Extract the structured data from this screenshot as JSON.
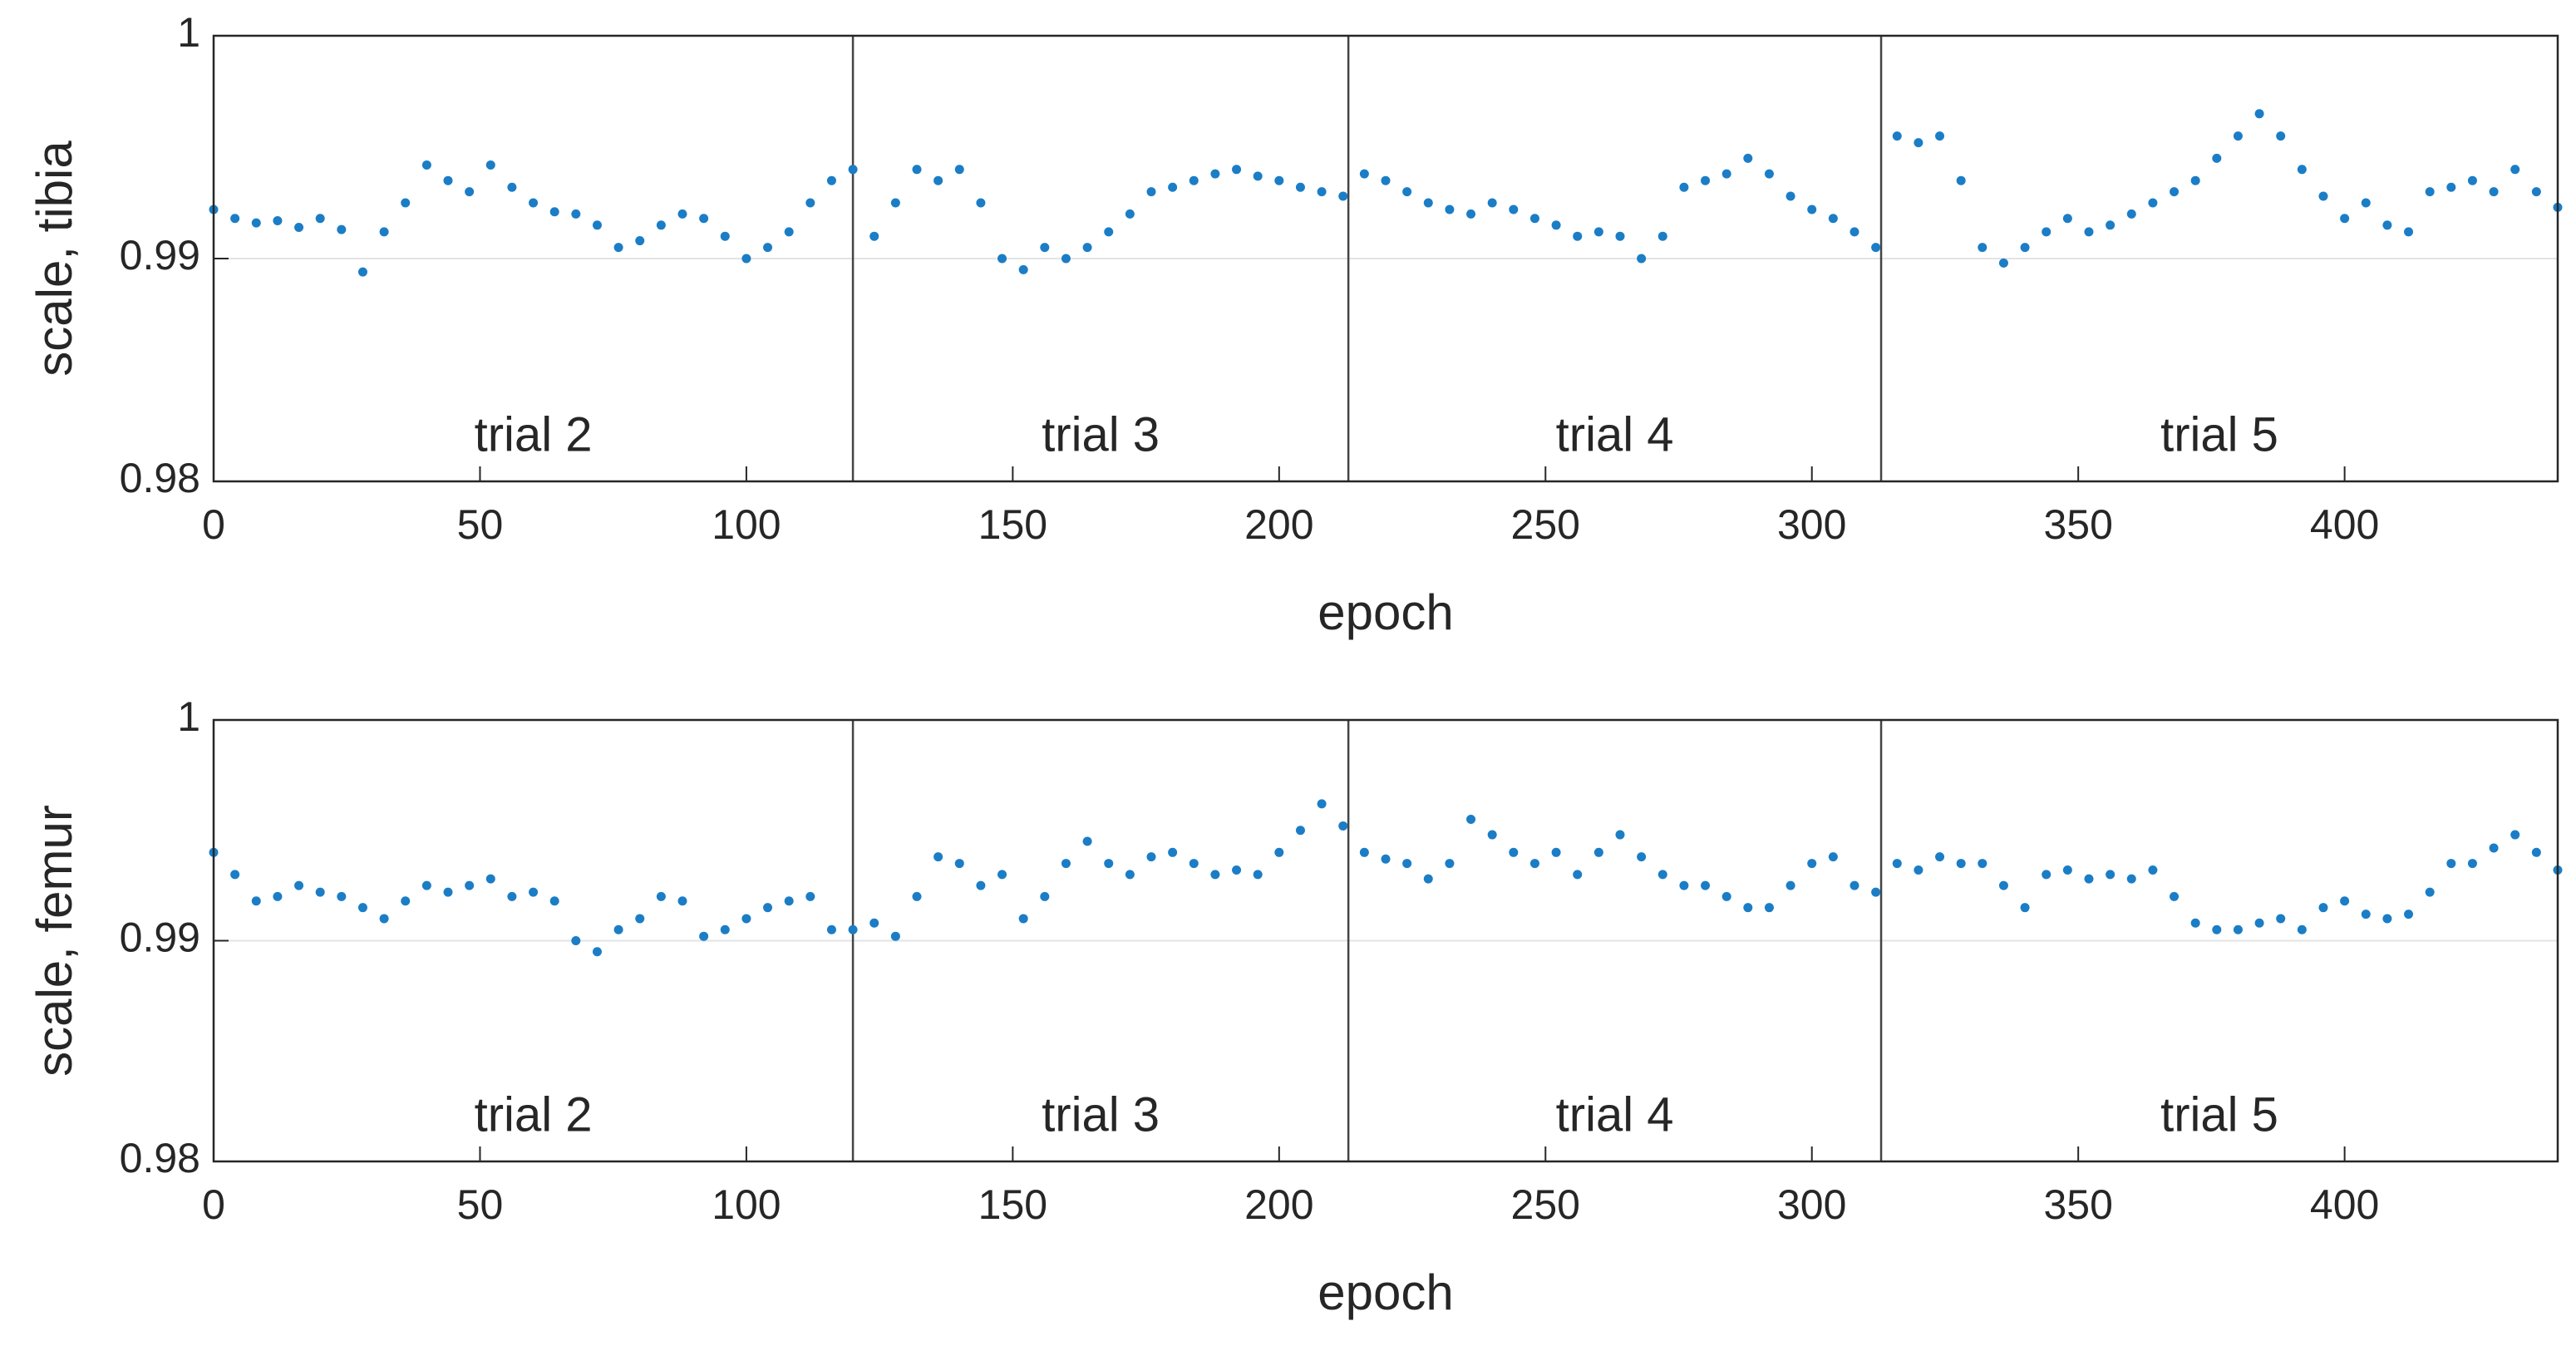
{
  "chart_data": [
    {
      "type": "scatter",
      "ylabel": "scale, tibia",
      "xlabel": "epoch",
      "color": "#1b7dc6",
      "xlim": [
        0,
        440
      ],
      "ylim": [
        0.98,
        1
      ],
      "xticks": [
        0,
        50,
        100,
        150,
        200,
        250,
        300,
        350,
        400
      ],
      "yticks": [
        0.98,
        0.99,
        1
      ],
      "grid": true,
      "dividers": [
        120,
        213,
        313
      ],
      "annotations": [
        "trial 2",
        "trial 3",
        "trial 4",
        "trial 5"
      ],
      "x": [
        0,
        4,
        8,
        12,
        16,
        20,
        24,
        28,
        32,
        36,
        40,
        44,
        48,
        52,
        56,
        60,
        64,
        68,
        72,
        76,
        80,
        84,
        88,
        92,
        96,
        100,
        104,
        108,
        112,
        116,
        120,
        124,
        128,
        132,
        136,
        140,
        144,
        148,
        152,
        156,
        160,
        164,
        168,
        172,
        176,
        180,
        184,
        188,
        192,
        196,
        200,
        204,
        208,
        212,
        216,
        220,
        224,
        228,
        232,
        236,
        240,
        244,
        248,
        252,
        256,
        260,
        264,
        268,
        272,
        276,
        280,
        284,
        288,
        292,
        296,
        300,
        304,
        308,
        312,
        316,
        320,
        324,
        328,
        332,
        336,
        340,
        344,
        348,
        352,
        356,
        360,
        364,
        368,
        372,
        376,
        380,
        384,
        388,
        392,
        396,
        400,
        404,
        408,
        412,
        416,
        420,
        424,
        428,
        432,
        436,
        440
      ],
      "values": [
        0.9922,
        0.9918,
        0.9916,
        0.9917,
        0.9914,
        0.9918,
        0.9913,
        0.9894,
        0.9912,
        0.9925,
        0.9942,
        0.9935,
        0.993,
        0.9942,
        0.9932,
        0.9925,
        0.9921,
        0.992,
        0.9915,
        0.9905,
        0.9908,
        0.9915,
        0.992,
        0.9918,
        0.991,
        0.99,
        0.9905,
        0.9912,
        0.9925,
        0.9935,
        0.994,
        0.991,
        0.9925,
        0.994,
        0.9935,
        0.994,
        0.9925,
        0.99,
        0.9895,
        0.9905,
        0.99,
        0.9905,
        0.9912,
        0.992,
        0.993,
        0.9932,
        0.9935,
        0.9938,
        0.994,
        0.9937,
        0.9935,
        0.9932,
        0.993,
        0.9928,
        0.9938,
        0.9935,
        0.993,
        0.9925,
        0.9922,
        0.992,
        0.9925,
        0.9922,
        0.9918,
        0.9915,
        0.991,
        0.9912,
        0.991,
        0.99,
        0.991,
        0.9932,
        0.9935,
        0.9938,
        0.9945,
        0.9938,
        0.9928,
        0.9922,
        0.9918,
        0.9912,
        0.9905,
        0.9955,
        0.9952,
        0.9955,
        0.9935,
        0.9905,
        0.9898,
        0.9905,
        0.9912,
        0.9918,
        0.9912,
        0.9915,
        0.992,
        0.9925,
        0.993,
        0.9935,
        0.9945,
        0.9955,
        0.9965,
        0.9955,
        0.994,
        0.9928,
        0.9918,
        0.9925,
        0.9915,
        0.9912,
        0.993,
        0.9932,
        0.9935,
        0.993,
        0.994,
        0.993,
        0.9923
      ]
    },
    {
      "type": "scatter",
      "ylabel": "scale, femur",
      "xlabel": "epoch",
      "color": "#1b7dc6",
      "xlim": [
        0,
        440
      ],
      "ylim": [
        0.98,
        1
      ],
      "xticks": [
        0,
        50,
        100,
        150,
        200,
        250,
        300,
        350,
        400
      ],
      "yticks": [
        0.98,
        0.99,
        1
      ],
      "grid": true,
      "dividers": [
        120,
        213,
        313
      ],
      "annotations": [
        "trial 2",
        "trial 3",
        "trial 4",
        "trial 5"
      ],
      "x": [
        0,
        4,
        8,
        12,
        16,
        20,
        24,
        28,
        32,
        36,
        40,
        44,
        48,
        52,
        56,
        60,
        64,
        68,
        72,
        76,
        80,
        84,
        88,
        92,
        96,
        100,
        104,
        108,
        112,
        116,
        120,
        124,
        128,
        132,
        136,
        140,
        144,
        148,
        152,
        156,
        160,
        164,
        168,
        172,
        176,
        180,
        184,
        188,
        192,
        196,
        200,
        204,
        208,
        212,
        216,
        220,
        224,
        228,
        232,
        236,
        240,
        244,
        248,
        252,
        256,
        260,
        264,
        268,
        272,
        276,
        280,
        284,
        288,
        292,
        296,
        300,
        304,
        308,
        312,
        316,
        320,
        324,
        328,
        332,
        336,
        340,
        344,
        348,
        352,
        356,
        360,
        364,
        368,
        372,
        376,
        380,
        384,
        388,
        392,
        396,
        400,
        404,
        408,
        412,
        416,
        420,
        424,
        428,
        432,
        436,
        440
      ],
      "values": [
        0.994,
        0.993,
        0.9918,
        0.992,
        0.9925,
        0.9922,
        0.992,
        0.9915,
        0.991,
        0.9918,
        0.9925,
        0.9922,
        0.9925,
        0.9928,
        0.992,
        0.9922,
        0.9918,
        0.99,
        0.9895,
        0.9905,
        0.991,
        0.992,
        0.9918,
        0.9902,
        0.9905,
        0.991,
        0.9915,
        0.9918,
        0.992,
        0.9905,
        0.9905,
        0.9908,
        0.9902,
        0.992,
        0.9938,
        0.9935,
        0.9925,
        0.993,
        0.991,
        0.992,
        0.9935,
        0.9945,
        0.9935,
        0.993,
        0.9938,
        0.994,
        0.9935,
        0.993,
        0.9932,
        0.993,
        0.994,
        0.995,
        0.9962,
        0.9952,
        0.994,
        0.9937,
        0.9935,
        0.9928,
        0.9935,
        0.9955,
        0.9948,
        0.994,
        0.9935,
        0.994,
        0.993,
        0.994,
        0.9948,
        0.9938,
        0.993,
        0.9925,
        0.9925,
        0.992,
        0.9915,
        0.9915,
        0.9925,
        0.9935,
        0.9938,
        0.9925,
        0.9922,
        0.9935,
        0.9932,
        0.9938,
        0.9935,
        0.9935,
        0.9925,
        0.9915,
        0.993,
        0.9932,
        0.9928,
        0.993,
        0.9928,
        0.9932,
        0.992,
        0.9908,
        0.9905,
        0.9905,
        0.9908,
        0.991,
        0.9905,
        0.9915,
        0.9918,
        0.9912,
        0.991,
        0.9912,
        0.9922,
        0.9935,
        0.9935,
        0.9942,
        0.9948,
        0.994,
        0.9932
      ]
    }
  ]
}
